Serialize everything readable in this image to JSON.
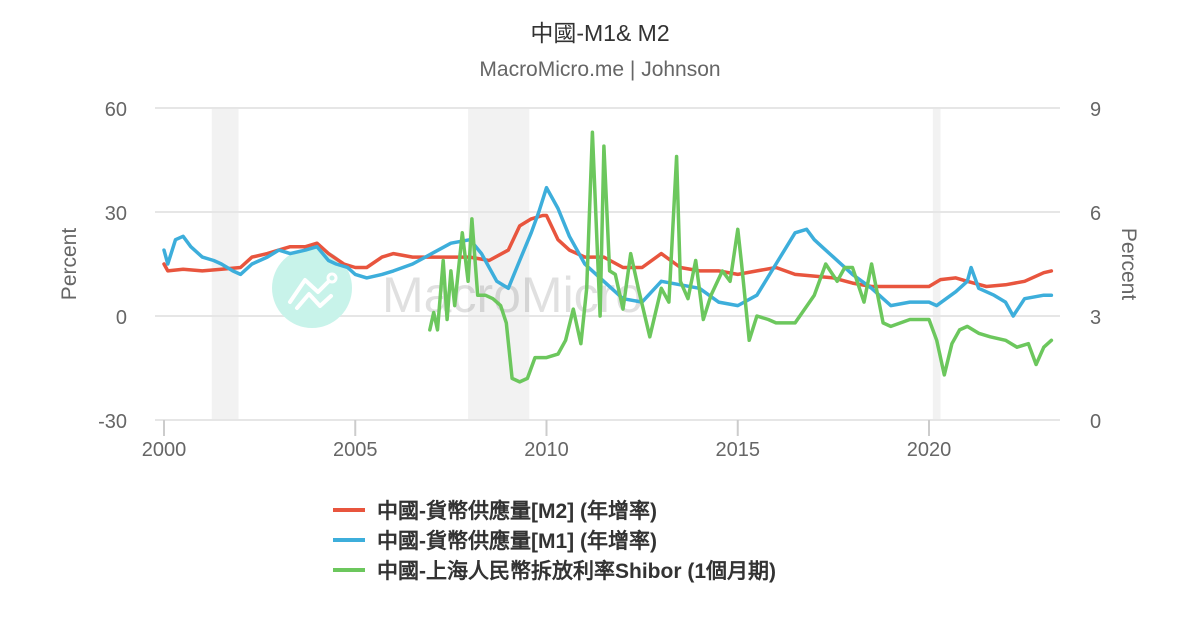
{
  "header": {
    "title": "中國-M1& M2",
    "subtitle": "MacroMicro.me | Johnson"
  },
  "watermark": {
    "text": "MacroMicro",
    "logo_color": "#C8F3EA"
  },
  "axes": {
    "left": {
      "label": "Percent",
      "ticks": [
        "60",
        "30",
        "0",
        "-30"
      ]
    },
    "right": {
      "label": "Percent",
      "ticks": [
        "9",
        "6",
        "3",
        "0"
      ]
    },
    "x": {
      "ticks": [
        "2000",
        "2005",
        "2010",
        "2015",
        "2020"
      ]
    }
  },
  "legend": [
    {
      "label": "中國-貨幣供應量[M2] (年增率)",
      "color": "#E8553E"
    },
    {
      "label": "中國-貨幣供應量[M1] (年增率)",
      "color": "#3DAEDB"
    },
    {
      "label": "中國-上海人民幣拆放利率Shibor (1個月期)",
      "color": "#6CC75D"
    }
  ],
  "chart_data": {
    "type": "line",
    "title": "中國-M1& M2",
    "subtitle": "MacroMicro.me | Johnson",
    "xlabel": "",
    "ylabel": "Percent",
    "ylabel_right": "Percent",
    "ylim": [
      -30,
      60
    ],
    "ylim_right": [
      0,
      9
    ],
    "grid": true,
    "legend_position": "bottom",
    "shaded_periods": [
      [
        2001.25,
        2001.95
      ],
      [
        2007.95,
        2009.55
      ],
      [
        2020.1,
        2020.3
      ]
    ],
    "series": [
      {
        "name": "中國-貨幣供應量[M2] (年增率)",
        "axis": "left",
        "color": "#E8553E",
        "x": [
          2000.0,
          2000.1,
          2000.5,
          2001.0,
          2001.5,
          2002.0,
          2002.3,
          2002.7,
          2003.0,
          2003.3,
          2003.7,
          2004.0,
          2004.3,
          2004.7,
          2005.0,
          2005.3,
          2005.7,
          2006.0,
          2006.5,
          2007.0,
          2007.5,
          2008.0,
          2008.5,
          2009.0,
          2009.3,
          2009.6,
          2009.9,
          2010.0,
          2010.3,
          2010.6,
          2011.0,
          2011.5,
          2012.0,
          2012.5,
          2013.0,
          2013.5,
          2014.0,
          2014.5,
          2015.0,
          2015.5,
          2016.0,
          2016.5,
          2017.0,
          2017.5,
          2018.0,
          2018.5,
          2019.0,
          2019.5,
          2020.0,
          2020.3,
          2020.7,
          2021.0,
          2021.5,
          2022.0,
          2022.5,
          2023.0,
          2023.2
        ],
        "values": [
          15,
          13,
          13.5,
          13,
          13.5,
          14,
          17,
          18,
          19,
          20,
          20,
          21,
          18,
          15,
          14,
          14,
          17,
          18,
          17,
          17,
          17,
          17,
          16,
          19,
          26,
          28,
          29,
          29,
          22,
          19,
          17,
          17,
          14,
          14,
          18,
          14,
          13,
          13,
          12,
          13,
          14,
          12,
          11.5,
          11,
          9.5,
          8.5,
          8.5,
          8.5,
          8.5,
          10.5,
          11,
          10,
          8.5,
          9,
          10,
          12.5,
          13
        ]
      },
      {
        "name": "中國-貨幣供應量[M1] (年增率)",
        "axis": "left",
        "color": "#3DAEDB",
        "x": [
          2000.0,
          2000.1,
          2000.3,
          2000.5,
          2000.7,
          2001.0,
          2001.3,
          2001.5,
          2001.8,
          2002.0,
          2002.3,
          2002.7,
          2003.0,
          2003.3,
          2003.7,
          2004.0,
          2004.3,
          2004.5,
          2004.8,
          2005.0,
          2005.3,
          2005.7,
          2006.0,
          2006.5,
          2007.0,
          2007.5,
          2008.0,
          2008.3,
          2008.7,
          2009.0,
          2009.3,
          2009.6,
          2009.8,
          2010.0,
          2010.3,
          2010.6,
          2011.0,
          2011.3,
          2011.7,
          2012.0,
          2012.5,
          2013.0,
          2013.5,
          2014.0,
          2014.5,
          2015.0,
          2015.5,
          2016.0,
          2016.5,
          2016.8,
          2017.0,
          2017.2,
          2017.5,
          2018.0,
          2018.5,
          2019.0,
          2019.5,
          2020.0,
          2020.2,
          2020.7,
          2021.0,
          2021.1,
          2021.3,
          2021.7,
          2022.0,
          2022.2,
          2022.5,
          2023.0,
          2023.2
        ],
        "values": [
          19,
          15,
          22,
          23,
          20,
          17,
          16,
          15,
          13,
          12,
          15,
          17,
          19,
          18,
          19,
          20,
          16,
          15,
          14,
          12,
          11,
          12,
          13,
          15,
          18,
          21,
          22,
          18,
          10,
          8,
          16,
          24,
          30,
          37,
          31,
          23,
          15,
          12,
          8,
          5,
          4,
          10,
          9,
          8,
          4,
          3,
          6,
          15,
          24,
          25,
          22,
          20,
          17,
          12,
          8,
          3,
          4,
          4,
          3,
          7,
          10,
          14,
          8,
          6,
          4,
          0,
          5,
          6,
          6
        ]
      },
      {
        "name": "中國-上海人民幣拆放利率Shibor (1個月期)",
        "axis": "right",
        "color": "#6CC75D",
        "x": [
          2006.95,
          2007.05,
          2007.15,
          2007.3,
          2007.4,
          2007.5,
          2007.6,
          2007.8,
          2007.95,
          2008.05,
          2008.2,
          2008.4,
          2008.6,
          2008.8,
          2008.95,
          2009.1,
          2009.3,
          2009.5,
          2009.7,
          2010.0,
          2010.3,
          2010.5,
          2010.7,
          2010.9,
          2011.05,
          2011.2,
          2011.4,
          2011.5,
          2011.65,
          2011.8,
          2012.0,
          2012.2,
          2012.4,
          2012.7,
          2013.0,
          2013.2,
          2013.4,
          2013.5,
          2013.7,
          2013.9,
          2014.1,
          2014.3,
          2014.6,
          2014.8,
          2015.0,
          2015.1,
          2015.3,
          2015.5,
          2015.8,
          2016.0,
          2016.5,
          2017.0,
          2017.3,
          2017.6,
          2017.8,
          2018.0,
          2018.3,
          2018.5,
          2018.8,
          2019.0,
          2019.5,
          2020.0,
          2020.2,
          2020.4,
          2020.6,
          2020.8,
          2021.0,
          2021.3,
          2021.6,
          2022.0,
          2022.3,
          2022.6,
          2022.8,
          2023.0,
          2023.2
        ],
        "values": [
          2.6,
          3.1,
          2.6,
          4.6,
          2.9,
          4.3,
          3.3,
          5.4,
          4.0,
          5.8,
          3.6,
          3.6,
          3.5,
          3.3,
          2.8,
          1.2,
          1.1,
          1.2,
          1.8,
          1.8,
          1.9,
          2.3,
          3.2,
          2.2,
          3.8,
          8.3,
          3.0,
          7.9,
          4.3,
          4.2,
          3.2,
          4.8,
          3.8,
          2.4,
          3.8,
          3.4,
          7.6,
          4.0,
          3.5,
          4.6,
          2.9,
          3.6,
          4.3,
          4.0,
          5.5,
          4.5,
          2.3,
          3.0,
          2.9,
          2.8,
          2.8,
          3.6,
          4.5,
          4.0,
          4.4,
          4.4,
          3.4,
          4.5,
          2.8,
          2.7,
          2.9,
          2.9,
          2.3,
          1.3,
          2.2,
          2.6,
          2.7,
          2.5,
          2.4,
          2.3,
          2.1,
          2.2,
          1.6,
          2.1,
          2.3
        ]
      }
    ]
  }
}
